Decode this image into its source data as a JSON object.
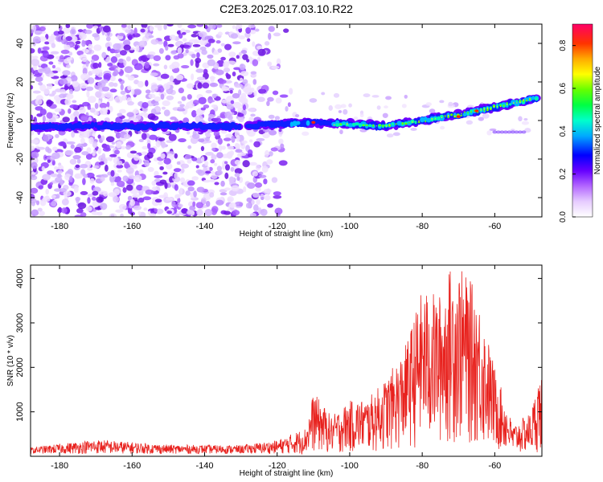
{
  "title": "C2E3.2025.017.03.10.R22",
  "chart_data": [
    {
      "type": "heatmap",
      "xlabel": "Height of straight line (km)",
      "ylabel": "Frequency (Hz)",
      "xlim": [
        -188,
        -47
      ],
      "ylim": [
        -50,
        50
      ],
      "x_ticks": [
        -180,
        -160,
        -140,
        -120,
        -100,
        -80,
        -60
      ],
      "y_ticks": [
        -40,
        -20,
        0,
        20,
        40
      ],
      "colorbar": {
        "label": "Normalized spectral amplitude",
        "range": [
          0,
          0.9
        ],
        "ticks": [
          0.0,
          0.2,
          0.4,
          0.6,
          0.8
        ]
      },
      "signal_track": {
        "description_points_x": [
          -188,
          -170,
          -150,
          -130,
          -120,
          -110,
          -100,
          -90,
          -80,
          -70,
          -60,
          -50
        ],
        "description_points_freq": [
          -3,
          -3,
          -3,
          -3,
          -2,
          -1,
          -2,
          -3,
          0,
          3,
          7,
          11
        ],
        "noise_region_x": [
          -188,
          -115
        ]
      }
    },
    {
      "type": "line",
      "xlabel": "Height of straight line (km)",
      "ylabel": "SNR (10 * v/v)",
      "xlim": [
        -188,
        -47
      ],
      "ylim": [
        0,
        4300
      ],
      "x_ticks": [
        -180,
        -160,
        -140,
        -120,
        -100,
        -80,
        -60
      ],
      "y_ticks": [
        1000,
        2000,
        3000,
        4000
      ],
      "envelope": {
        "x": [
          -188,
          -170,
          -150,
          -130,
          -120,
          -112,
          -110,
          -105,
          -100,
          -95,
          -90,
          -85,
          -80,
          -75,
          -72,
          -70,
          -65,
          -60,
          -55,
          -50,
          -48
        ],
        "y": [
          200,
          380,
          260,
          250,
          360,
          650,
          1450,
          900,
          1250,
          1300,
          1750,
          2400,
          3750,
          3650,
          4300,
          4300,
          3750,
          2000,
          700,
          1000,
          1750
        ]
      }
    }
  ]
}
